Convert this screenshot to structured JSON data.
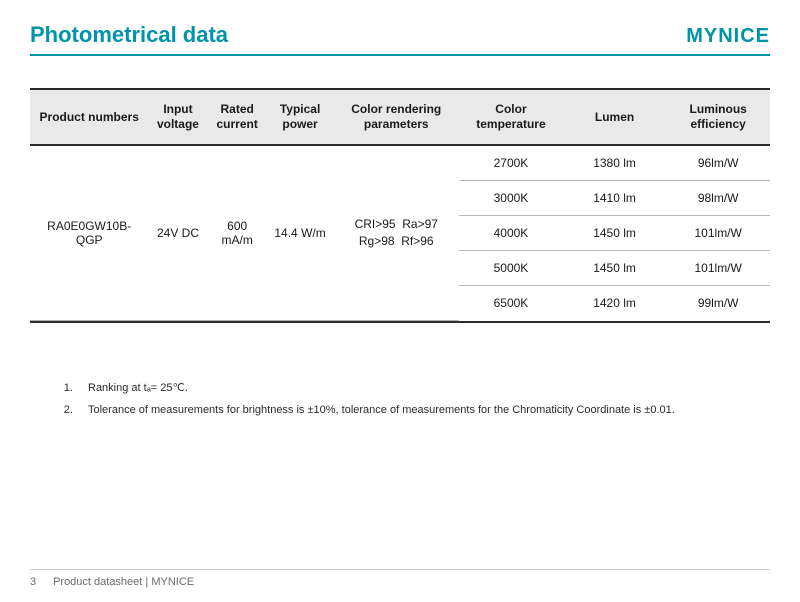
{
  "theme": {
    "accent": "#0094a8",
    "text": "#1a1a1a",
    "rule": "#2b2b2b",
    "subrule": "#b7b7b7",
    "header_bg": "#e9e9e9",
    "footer_text": "#6a6a6a"
  },
  "header": {
    "title": "Photometrical data",
    "brand": "MYNICE"
  },
  "table": {
    "columns": [
      "Product numbers",
      "Input voltage",
      "Rated current",
      "Typical power",
      "Color rendering parameters",
      "Color temperature",
      "Lumen",
      "Luminous efficiency"
    ],
    "shared": {
      "product_number": "RA0E0GW10B-QGP",
      "input_voltage": "24V DC",
      "rated_current": "600 mA/m",
      "typical_power": "14.4 W/m",
      "crp_line1": "CRI>95  Ra>97",
      "crp_line2": "Rg>98  Rf>96"
    },
    "rows": [
      {
        "ct": "2700K",
        "lumen": "1380 lm",
        "eff": "96lm/W"
      },
      {
        "ct": "3000K",
        "lumen": "1410 lm",
        "eff": "98lm/W"
      },
      {
        "ct": "4000K",
        "lumen": "1450 lm",
        "eff": "101lm/W"
      },
      {
        "ct": "5000K",
        "lumen": "1450 lm",
        "eff": "101lm/W"
      },
      {
        "ct": "6500K",
        "lumen": "1420 lm",
        "eff": "99lm/W"
      }
    ]
  },
  "notes": {
    "n1": "Ranking at tₐ= 25℃.",
    "n2": "Tolerance of measurements for brightness is ±10%, tolerance of measurements for the Chromaticity Coordinate is ±0.01."
  },
  "footer": {
    "page_number": "3",
    "text": "Product datasheet | MYNICE"
  }
}
